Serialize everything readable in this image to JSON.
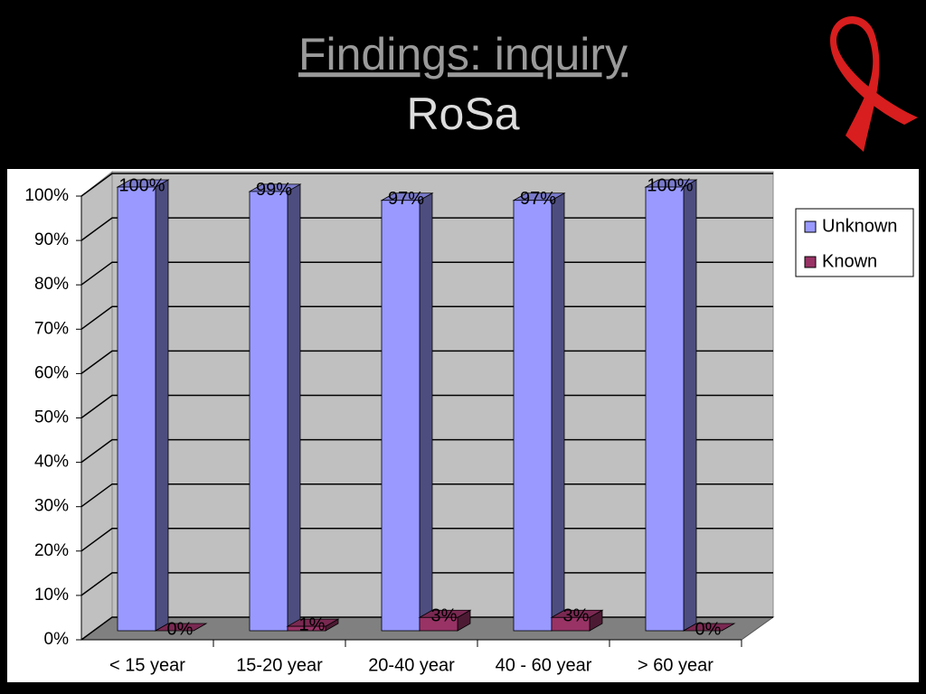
{
  "chart_data": {
    "type": "bar3d",
    "title": "Findings: inquiry",
    "subtitle": "RoSa",
    "categories": [
      "< 15 year",
      "15-20 year",
      "20-40 year",
      "40 - 60 year",
      "> 60 year"
    ],
    "series": [
      {
        "name": "Unknown",
        "color": "#9999ff",
        "values": [
          100,
          99,
          97,
          97,
          100
        ],
        "value_labels": [
          "100%",
          "99%",
          "97%",
          "97%",
          "100%"
        ]
      },
      {
        "name": "Known",
        "color": "#993366",
        "values": [
          0,
          1,
          3,
          3,
          0
        ],
        "value_labels": [
          "0%",
          "1%",
          "3%",
          "3%",
          "0%"
        ]
      }
    ],
    "ylim": [
      0,
      100
    ],
    "yticks": [
      {
        "value": 0,
        "label": "0%"
      },
      {
        "value": 10,
        "label": "10%"
      },
      {
        "value": 20,
        "label": "20%"
      },
      {
        "value": 30,
        "label": "30%"
      },
      {
        "value": 40,
        "label": "40%"
      },
      {
        "value": 50,
        "label": "50%"
      },
      {
        "value": 60,
        "label": "60%"
      },
      {
        "value": 70,
        "label": "70%"
      },
      {
        "value": 80,
        "label": "80%"
      },
      {
        "value": 90,
        "label": "90%"
      },
      {
        "value": 100,
        "label": "100%"
      }
    ],
    "grid": true,
    "legend": "right"
  }
}
